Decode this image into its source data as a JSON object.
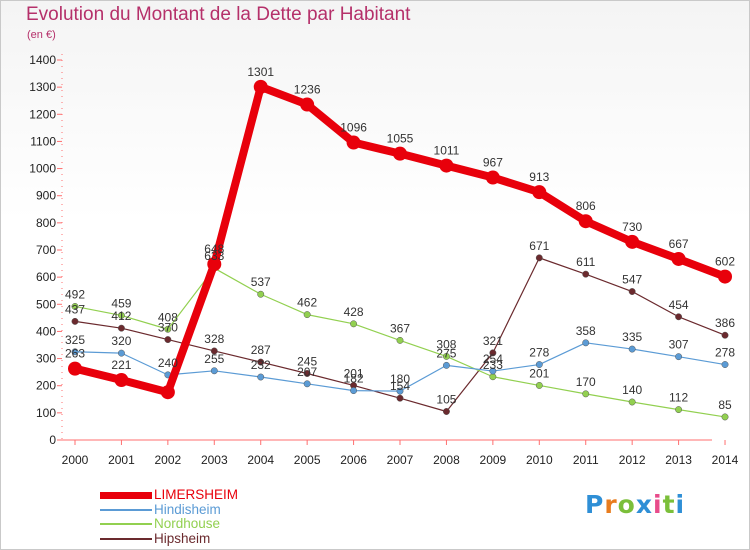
{
  "title": "Evolution du Montant de la Dette par Habitant",
  "unit": "(en €)",
  "logo": {
    "text": "Proxiti",
    "colors": [
      "#2f8fd6",
      "#e87c1e",
      "#7bbf3a",
      "#2f8fd6",
      "#e84c8b",
      "#7bbf3a",
      "#2f8fd6"
    ]
  },
  "chart_data": {
    "type": "line",
    "title": "Evolution du Montant de la Dette par Habitant",
    "ylabel": "(en €)",
    "xlabel": "",
    "x": [
      "2000",
      "2001",
      "2002",
      "2003",
      "2004",
      "2005",
      "2006",
      "2007",
      "2008",
      "2009",
      "2010",
      "2011",
      "2012",
      "2013",
      "2014"
    ],
    "ylim": [
      0,
      1400
    ],
    "yticks": [
      0,
      100,
      200,
      300,
      400,
      500,
      600,
      700,
      800,
      900,
      1000,
      1100,
      1200,
      1300,
      1400
    ],
    "grid": false,
    "legend": "bottom-left",
    "series": [
      {
        "name": "LIMERSHEIM",
        "color": "#e8000b",
        "values": [
          263,
          221,
          176,
          648,
          1301,
          1236,
          1096,
          1055,
          1011,
          967,
          913,
          806,
          730,
          667,
          602
        ],
        "labels": [
          true,
          true,
          false,
          true,
          true,
          true,
          true,
          true,
          true,
          true,
          true,
          true,
          true,
          true,
          true
        ]
      },
      {
        "name": "Hindisheim",
        "color": "#5b9bd5",
        "values": [
          325,
          320,
          240,
          255,
          232,
          207,
          182,
          180,
          275,
          254,
          278,
          358,
          335,
          307,
          278
        ],
        "labels": [
          true,
          true,
          true,
          true,
          true,
          true,
          true,
          true,
          true,
          true,
          true,
          true,
          true,
          true,
          true
        ]
      },
      {
        "name": "Nordhouse",
        "color": "#92d050",
        "values": [
          492,
          459,
          408,
          633,
          537,
          462,
          428,
          367,
          308,
          233,
          201,
          170,
          140,
          112,
          85
        ],
        "labels": [
          true,
          true,
          true,
          true,
          true,
          true,
          true,
          true,
          true,
          true,
          true,
          true,
          true,
          true,
          true
        ]
      },
      {
        "name": "Hipsheim",
        "color": "#6b2a2e",
        "values": [
          437,
          412,
          370,
          328,
          287,
          245,
          201,
          154,
          105,
          321,
          671,
          611,
          547,
          454,
          386
        ],
        "labels": [
          true,
          true,
          true,
          true,
          true,
          true,
          true,
          true,
          true,
          true,
          true,
          true,
          true,
          true,
          true
        ]
      }
    ]
  }
}
